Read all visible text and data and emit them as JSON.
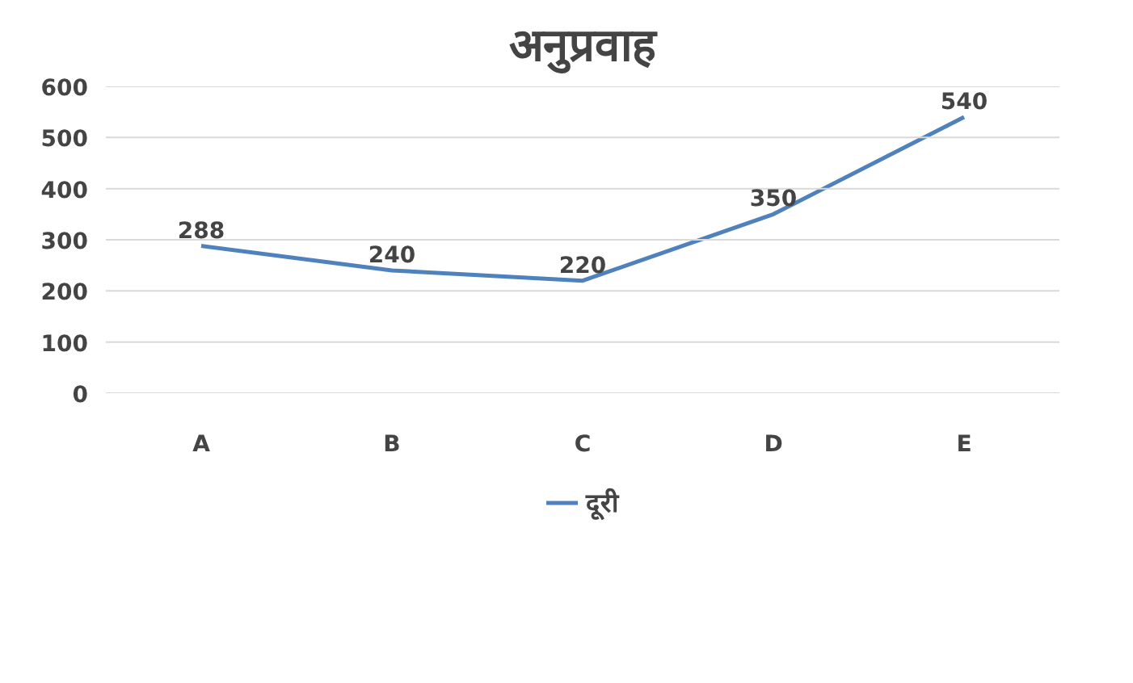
{
  "chart_data": {
    "type": "line",
    "title": "अनुप्रवाह",
    "categories": [
      "A",
      "B",
      "C",
      "D",
      "E"
    ],
    "series": [
      {
        "name": "दूरी",
        "color": "#4f81bd",
        "values": [
          288,
          240,
          220,
          350,
          540
        ]
      }
    ],
    "ylim": [
      0,
      600
    ],
    "yticks": [
      0,
      100,
      200,
      300,
      400,
      500,
      600
    ],
    "grid": "y",
    "legend": "bottom",
    "data_labels": true,
    "marker": "none",
    "line_style": "solid"
  }
}
